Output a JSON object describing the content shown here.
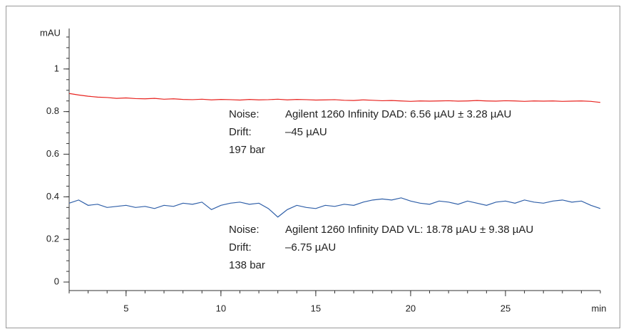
{
  "chart_data": {
    "type": "line",
    "y_label": "mAU",
    "x_label": "min",
    "x": [
      2,
      2.5,
      3,
      3.5,
      4,
      4.5,
      5,
      5.5,
      6,
      6.5,
      7,
      7.5,
      8,
      8.5,
      9,
      9.5,
      10,
      10.5,
      11,
      11.5,
      12,
      12.5,
      13,
      13.5,
      14,
      14.5,
      15,
      15.5,
      16,
      16.5,
      17,
      17.5,
      18,
      18.5,
      19,
      19.5,
      20,
      20.5,
      21,
      21.5,
      22,
      22.5,
      23,
      23.5,
      24,
      24.5,
      25,
      25.5,
      26,
      26.5,
      27,
      27.5,
      28,
      28.5,
      29,
      29.5,
      30
    ],
    "series": [
      {
        "color": "#e8231f",
        "values": [
          0.885,
          0.878,
          0.872,
          0.868,
          0.866,
          0.862,
          0.864,
          0.861,
          0.86,
          0.862,
          0.858,
          0.86,
          0.857,
          0.856,
          0.858,
          0.855,
          0.857,
          0.856,
          0.854,
          0.857,
          0.855,
          0.856,
          0.858,
          0.855,
          0.857,
          0.856,
          0.854,
          0.855,
          0.856,
          0.853,
          0.852,
          0.855,
          0.853,
          0.851,
          0.852,
          0.85,
          0.848,
          0.85,
          0.849,
          0.85,
          0.851,
          0.849,
          0.85,
          0.852,
          0.85,
          0.849,
          0.851,
          0.85,
          0.848,
          0.85,
          0.849,
          0.85,
          0.848,
          0.849,
          0.85,
          0.848,
          0.843
        ]
      },
      {
        "color": "#2f5fa8",
        "values": [
          0.37,
          0.385,
          0.36,
          0.365,
          0.35,
          0.355,
          0.36,
          0.35,
          0.355,
          0.345,
          0.36,
          0.355,
          0.37,
          0.365,
          0.375,
          0.34,
          0.36,
          0.37,
          0.375,
          0.365,
          0.37,
          0.345,
          0.305,
          0.34,
          0.36,
          0.35,
          0.345,
          0.36,
          0.355,
          0.365,
          0.36,
          0.375,
          0.385,
          0.39,
          0.385,
          0.395,
          0.38,
          0.37,
          0.365,
          0.38,
          0.375,
          0.365,
          0.38,
          0.37,
          0.36,
          0.375,
          0.38,
          0.37,
          0.385,
          0.375,
          0.37,
          0.38,
          0.385,
          0.375,
          0.38,
          0.36,
          0.345
        ]
      }
    ],
    "xlim": [
      2,
      30
    ],
    "xticks": [
      5,
      10,
      15,
      20,
      25
    ],
    "ylim": [
      -0.04,
      1.19
    ],
    "yticks": [
      0,
      0.2,
      0.4,
      0.6,
      0.8,
      1
    ],
    "annotations": [
      {
        "lines": [
          [
            "Noise:",
            "Agilent 1260 Infinity DAD: 6.56 µAU ± 3.28 µAU"
          ],
          [
            "Drift:",
            "–45 µAU"
          ],
          [
            "197 bar"
          ]
        ]
      },
      {
        "lines": [
          [
            "Noise:",
            "Agilent 1260 Infinity DAD VL: 18.78 µAU ± 9.38 µAU"
          ],
          [
            "Drift:",
            "–6.75 µAU"
          ],
          [
            "138 bar"
          ]
        ]
      }
    ]
  }
}
